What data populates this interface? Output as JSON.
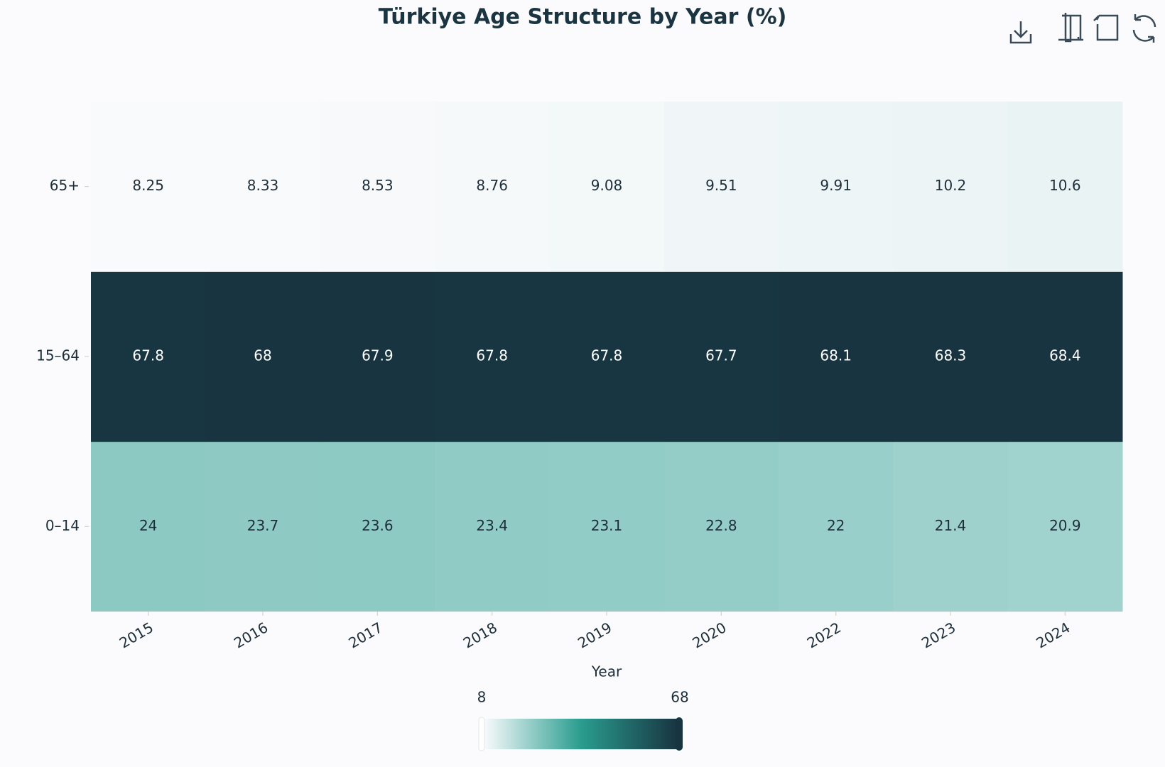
{
  "chart_data": {
    "type": "heatmap",
    "title": "Türkiye Age Structure by Year (%)",
    "x_label": "Year",
    "categories": [
      "2015",
      "2016",
      "2017",
      "2018",
      "2019",
      "2020",
      "2022",
      "2023",
      "2024"
    ],
    "y_categories": [
      "0–14",
      "15–64",
      "65+"
    ],
    "values": [
      [
        24,
        23.7,
        23.6,
        23.4,
        23.1,
        22.8,
        22,
        21.4,
        20.9
      ],
      [
        67.8,
        68,
        67.9,
        67.8,
        67.8,
        67.7,
        68.1,
        68.3,
        68.4
      ],
      [
        8.25,
        8.33,
        8.53,
        8.76,
        9.08,
        9.51,
        9.91,
        10.2,
        10.6
      ]
    ],
    "visual_map": {
      "min": 8,
      "max": 68,
      "colors": [
        "#fbfbfd",
        "#2a9d8f",
        "#183441"
      ]
    }
  }
}
